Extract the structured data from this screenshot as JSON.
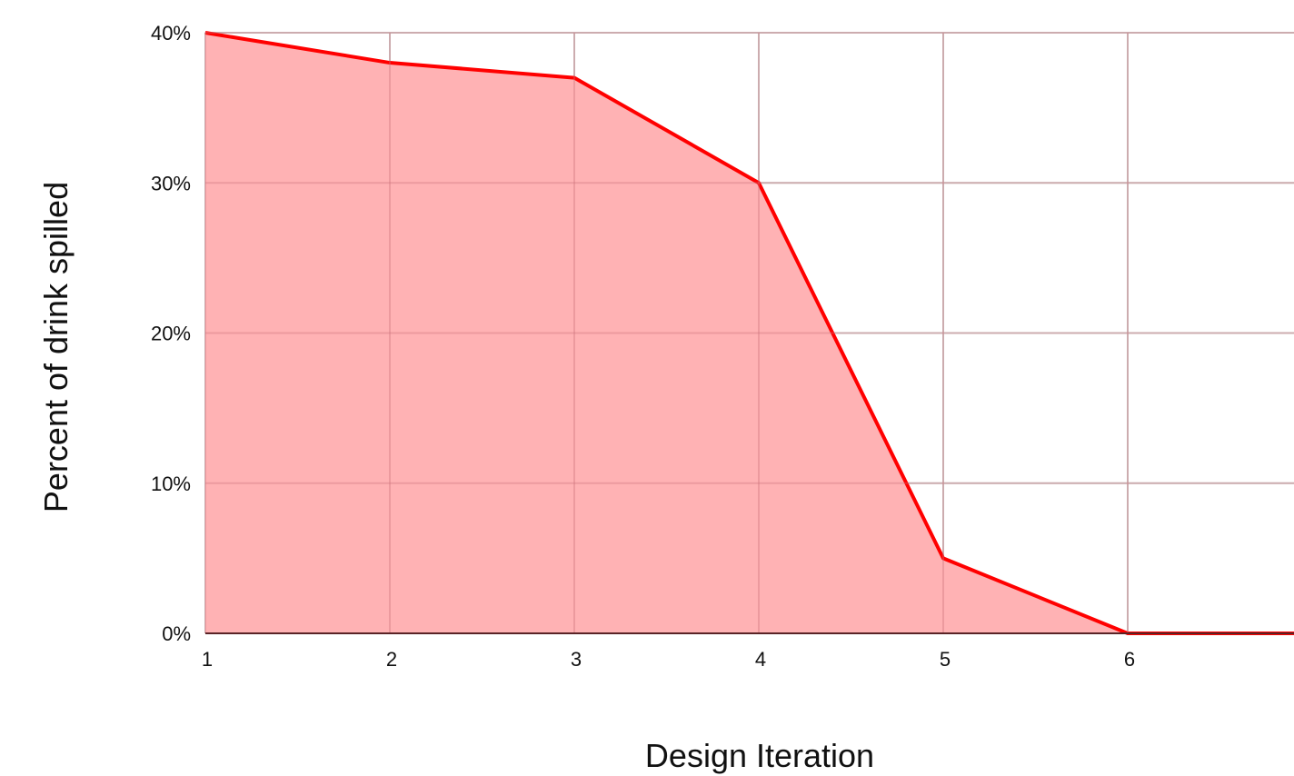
{
  "chart_data": {
    "type": "area",
    "title": "",
    "xlabel": "Design Iteration",
    "ylabel": "Percent of drink spilled",
    "x": [
      1,
      2,
      3,
      4,
      5,
      6,
      7
    ],
    "x_tick_labels": [
      "1",
      "2",
      "3",
      "4",
      "5",
      "6"
    ],
    "y_tick_labels": [
      "0%",
      "10%",
      "20%",
      "30%",
      "40%"
    ],
    "y_ticks": [
      0,
      10,
      20,
      30,
      40
    ],
    "xlim": [
      1,
      7
    ],
    "ylim": [
      0,
      40
    ],
    "grid": true,
    "legend": "none",
    "series": [
      {
        "values": [
          40,
          38,
          37,
          30,
          5,
          0,
          0
        ],
        "color": "#ff0000",
        "fill": "#ffb0b2"
      }
    ]
  }
}
